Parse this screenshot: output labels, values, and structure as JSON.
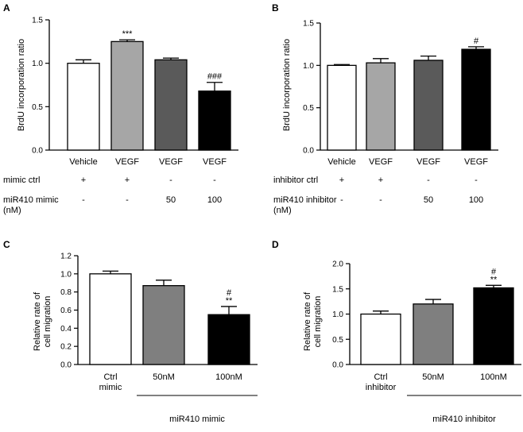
{
  "chart_data": [
    {
      "type": "bar",
      "panel": "A",
      "ylabel": "BrdU incorporation ratio",
      "ylim": [
        0,
        1.5
      ],
      "yticks": [
        "0.0",
        "0.5",
        "1.0",
        "1.5"
      ],
      "categories": [
        "Vehicle",
        "VEGF",
        "VEGF",
        "VEGF"
      ],
      "values": [
        1.0,
        1.25,
        1.04,
        0.68
      ],
      "errors": [
        0.04,
        0.02,
        0.02,
        0.1
      ],
      "colors": [
        "#ffffff",
        "#a6a6a6",
        "#5a5a5a",
        "#000000"
      ],
      "significance": [
        "",
        "***",
        "",
        "###"
      ],
      "conditions": [
        {
          "label": "mimic ctrl",
          "values": [
            "+",
            "+",
            "-",
            "-"
          ]
        },
        {
          "label": "miR410 mimic\n(nM)",
          "values": [
            "-",
            "-",
            "50",
            "100"
          ]
        }
      ]
    },
    {
      "type": "bar",
      "panel": "B",
      "ylabel": "BrdU incorporation ratio",
      "ylim": [
        0,
        1.5
      ],
      "yticks": [
        "0.0",
        "0.5",
        "1.0",
        "1.5"
      ],
      "categories": [
        "Vehicle",
        "VEGF",
        "VEGF",
        "VEGF"
      ],
      "values": [
        1.0,
        1.03,
        1.06,
        1.19
      ],
      "errors": [
        0.01,
        0.05,
        0.05,
        0.03
      ],
      "colors": [
        "#ffffff",
        "#a6a6a6",
        "#5a5a5a",
        "#000000"
      ],
      "significance": [
        "",
        "",
        "",
        "#"
      ],
      "conditions": [
        {
          "label": "inhibitor ctrl",
          "values": [
            "+",
            "+",
            "-",
            "-"
          ]
        },
        {
          "label": "miR410 inhibitor\n(nM)",
          "values": [
            "-",
            "-",
            "50",
            "100"
          ]
        }
      ]
    },
    {
      "type": "bar",
      "panel": "C",
      "ylabel": "Relative  rate of\ncell migration",
      "ylim": [
        0,
        1.2
      ],
      "yticks": [
        "0.0",
        "0.2",
        "0.4",
        "0.6",
        "0.8",
        "1.0",
        "1.2"
      ],
      "categories": [
        "Ctrl\nmimic",
        "50nM",
        "100nM"
      ],
      "values": [
        1.0,
        0.87,
        0.55
      ],
      "errors": [
        0.03,
        0.06,
        0.09
      ],
      "colors": [
        "#ffffff",
        "#7f7f7f",
        "#000000"
      ],
      "significance": [
        "",
        "",
        "#\n**"
      ],
      "group_label": "miR410 mimic"
    },
    {
      "type": "bar",
      "panel": "D",
      "ylabel": "Relative  rate of\ncell migration",
      "ylim": [
        0,
        2.0
      ],
      "yticks": [
        "0.0",
        "0.5",
        "1.0",
        "1.5",
        "2.0"
      ],
      "categories": [
        "Ctrl\ninhibitor",
        "50nM",
        "100nM"
      ],
      "values": [
        1.0,
        1.2,
        1.52
      ],
      "errors": [
        0.06,
        0.09,
        0.05
      ],
      "colors": [
        "#ffffff",
        "#7f7f7f",
        "#000000"
      ],
      "significance": [
        "",
        "",
        "#\n**"
      ],
      "group_label": "miR410 inhibitor"
    }
  ]
}
